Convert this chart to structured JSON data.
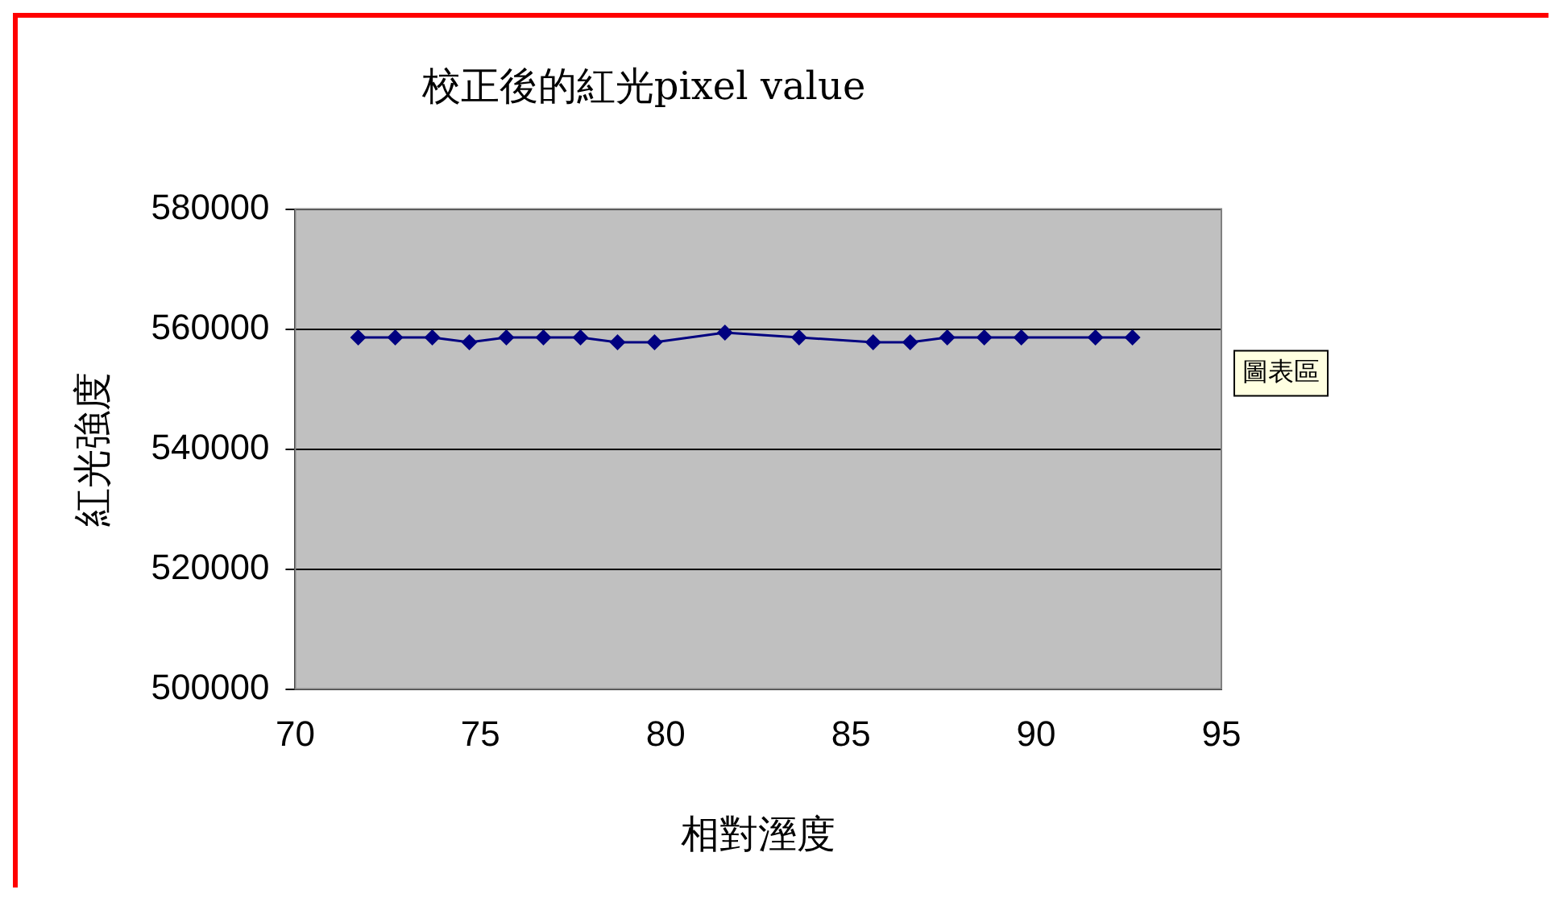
{
  "chart_data": {
    "type": "line",
    "title": "校正後的紅光pixel value",
    "xlabel": "相對溼度",
    "ylabel": "紅光強度",
    "x": [
      71.7,
      72.7,
      73.7,
      74.7,
      75.7,
      76.7,
      77.7,
      78.7,
      79.7,
      81.6,
      83.6,
      85.6,
      86.6,
      87.6,
      88.6,
      89.6,
      91.6,
      92.6
    ],
    "series": [
      {
        "color": "#000080",
        "values": [
          558600,
          558600,
          558600,
          557800,
          558600,
          558600,
          558600,
          557800,
          557800,
          559400,
          558600,
          557800,
          557800,
          558600,
          558600,
          558600,
          558600,
          558600
        ]
      }
    ],
    "xlim": [
      70,
      95
    ],
    "xticks": [
      70,
      75,
      80,
      85,
      90,
      95
    ],
    "ylim": [
      500000,
      580000
    ],
    "yticks": [
      500000,
      520000,
      540000,
      560000,
      580000
    ],
    "grid": "y",
    "legend": false,
    "marker": "diamond",
    "line_style": "solid",
    "annotations": [
      "圖表區"
    ]
  }
}
